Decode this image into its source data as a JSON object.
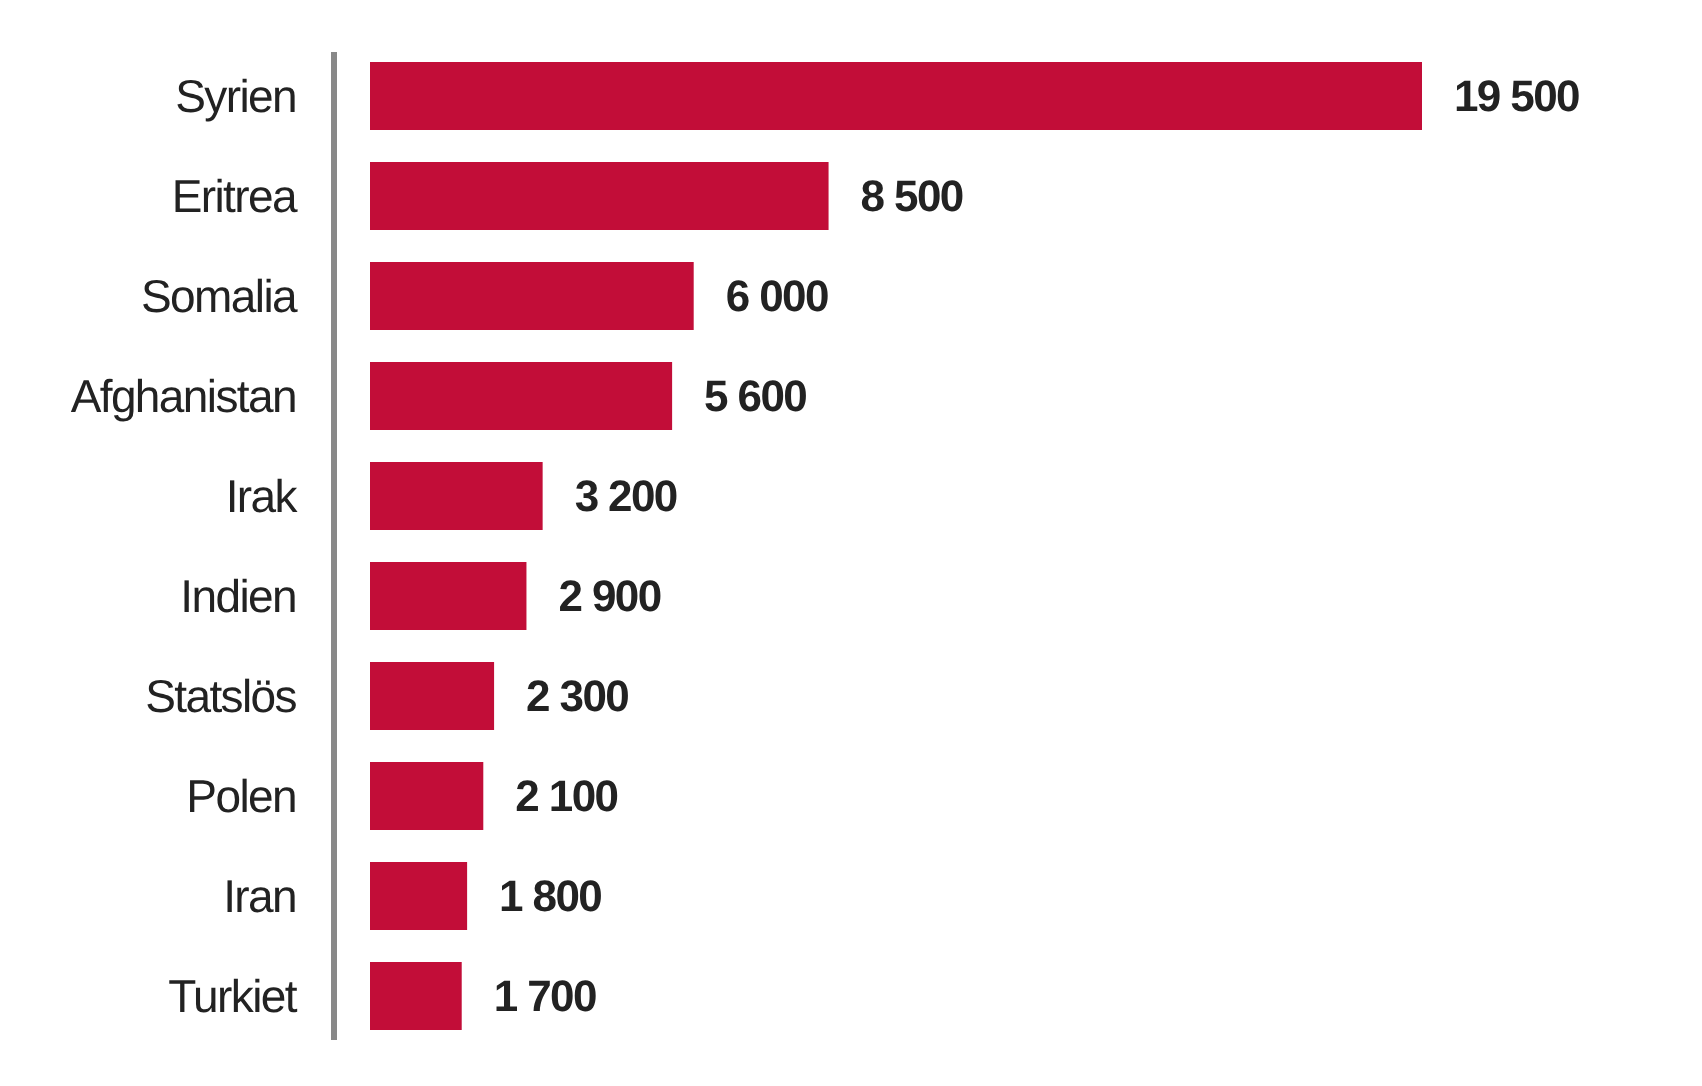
{
  "chart_data": {
    "type": "bar",
    "orientation": "horizontal",
    "categories": [
      "Syrien",
      "Eritrea",
      "Somalia",
      "Afghanistan",
      "Irak",
      "Indien",
      "Statslös",
      "Polen",
      "Iran",
      "Turkiet"
    ],
    "values": [
      19500,
      8500,
      6000,
      5600,
      3200,
      2900,
      2300,
      2100,
      1800,
      1700
    ],
    "value_labels": [
      "19 500",
      "8 500",
      "6 000",
      "5 600",
      "3 200",
      "2 900",
      "2 300",
      "2 100",
      "1 800",
      "1 700"
    ],
    "color": "#c20d38"
  }
}
